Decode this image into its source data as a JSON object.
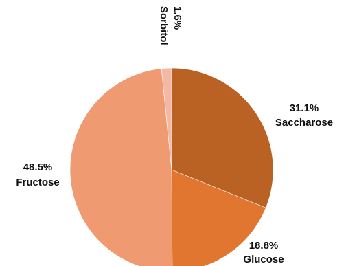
{
  "chart_data": {
    "type": "pie",
    "title": "",
    "start_angle_deg": 0,
    "direction": "clockwise",
    "slices": [
      {
        "name": "Saccharose",
        "percent_label": "31.1%",
        "value": 31.1,
        "color": "#b96224"
      },
      {
        "name": "Glucose",
        "percent_label": "18.8%",
        "value": 18.8,
        "color": "#e0762f"
      },
      {
        "name": "Fructose",
        "percent_label": "48.5%",
        "value": 48.5,
        "color": "#f09a71"
      },
      {
        "name": "Sorbitol",
        "percent_label": "1.6%",
        "value": 1.6,
        "color": "#f4b8a4"
      }
    ]
  }
}
